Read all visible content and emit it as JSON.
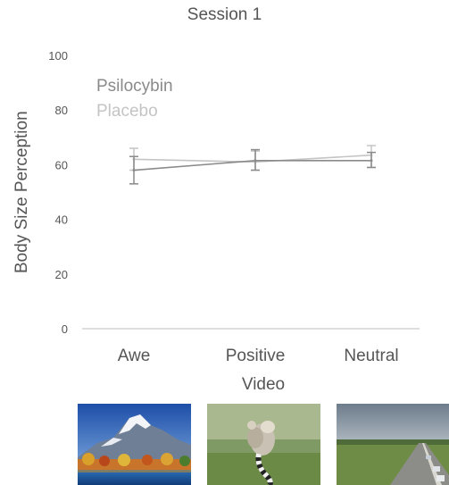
{
  "chart_data": {
    "type": "line",
    "title": "Session 1",
    "xlabel": "Video",
    "ylabel": "Body  Size Perception",
    "categories": [
      "Awe",
      "Positive",
      "Neutral"
    ],
    "ylim": [
      0,
      100
    ],
    "yticks": [
      0,
      20,
      40,
      60,
      80,
      100
    ],
    "grid": false,
    "legend_placement": "top-left",
    "series": [
      {
        "name": "Psilocybin",
        "color": "#8a8a8a",
        "values": [
          58,
          61.5,
          61.5
        ],
        "error": [
          [
            53,
            63
          ],
          [
            58,
            65.5
          ],
          [
            59,
            64.5
          ]
        ]
      },
      {
        "name": "Placebo",
        "color": "#c4c4c4",
        "values": [
          62,
          61,
          63.5
        ],
        "error": [
          [
            58,
            66
          ],
          [
            58,
            65
          ],
          [
            59,
            67
          ]
        ]
      }
    ]
  },
  "images": [
    {
      "name": "mountain-lake-image"
    },
    {
      "name": "lemurs-image"
    },
    {
      "name": "highway-image"
    }
  ]
}
